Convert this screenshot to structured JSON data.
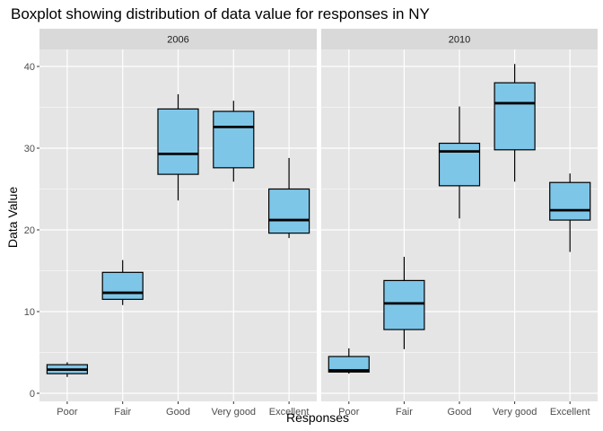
{
  "chart_data": {
    "type": "boxplot",
    "title": "Boxplot showing distribution of data value for responses in NY",
    "xlabel": "Responses",
    "ylabel": "Data Value",
    "ylim": [
      0,
      42
    ],
    "yticks": [
      0,
      10,
      20,
      30,
      40
    ],
    "grid": true,
    "legend": "none",
    "colors": {
      "panel_bg": "#e5e5e5",
      "strip_bg": "#d9d9d9",
      "grid": "#ffffff",
      "box_fill": "#7ec6e8",
      "box_stroke": "#000000"
    },
    "categories": [
      "Poor",
      "Fair",
      "Good",
      "Very good",
      "Excellent"
    ],
    "facets": [
      {
        "label": "2006",
        "boxes": [
          {
            "category": "Poor",
            "min": 2.0,
            "q1": 2.4,
            "median": 2.9,
            "q3": 3.5,
            "max": 3.8
          },
          {
            "category": "Fair",
            "min": 10.8,
            "q1": 11.5,
            "median": 12.3,
            "q3": 14.8,
            "max": 16.3
          },
          {
            "category": "Good",
            "min": 23.6,
            "q1": 26.8,
            "median": 29.3,
            "q3": 34.8,
            "max": 36.6
          },
          {
            "category": "Very good",
            "min": 25.9,
            "q1": 27.6,
            "median": 32.6,
            "q3": 34.5,
            "max": 35.8
          },
          {
            "category": "Excellent",
            "min": 19.0,
            "q1": 19.6,
            "median": 21.2,
            "q3": 25.0,
            "max": 28.8
          }
        ]
      },
      {
        "label": "2010",
        "boxes": [
          {
            "category": "Poor",
            "min": 2.4,
            "q1": 2.6,
            "median": 2.8,
            "q3": 4.5,
            "max": 5.5
          },
          {
            "category": "Fair",
            "min": 5.4,
            "q1": 7.8,
            "median": 11.0,
            "q3": 13.8,
            "max": 16.7
          },
          {
            "category": "Good",
            "min": 21.4,
            "q1": 25.4,
            "median": 29.6,
            "q3": 30.6,
            "max": 35.1
          },
          {
            "category": "Very good",
            "min": 25.9,
            "q1": 29.8,
            "median": 35.5,
            "q3": 38.0,
            "max": 40.3
          },
          {
            "category": "Excellent",
            "min": 17.3,
            "q1": 21.2,
            "median": 22.4,
            "q3": 25.8,
            "max": 26.9
          }
        ]
      }
    ]
  }
}
